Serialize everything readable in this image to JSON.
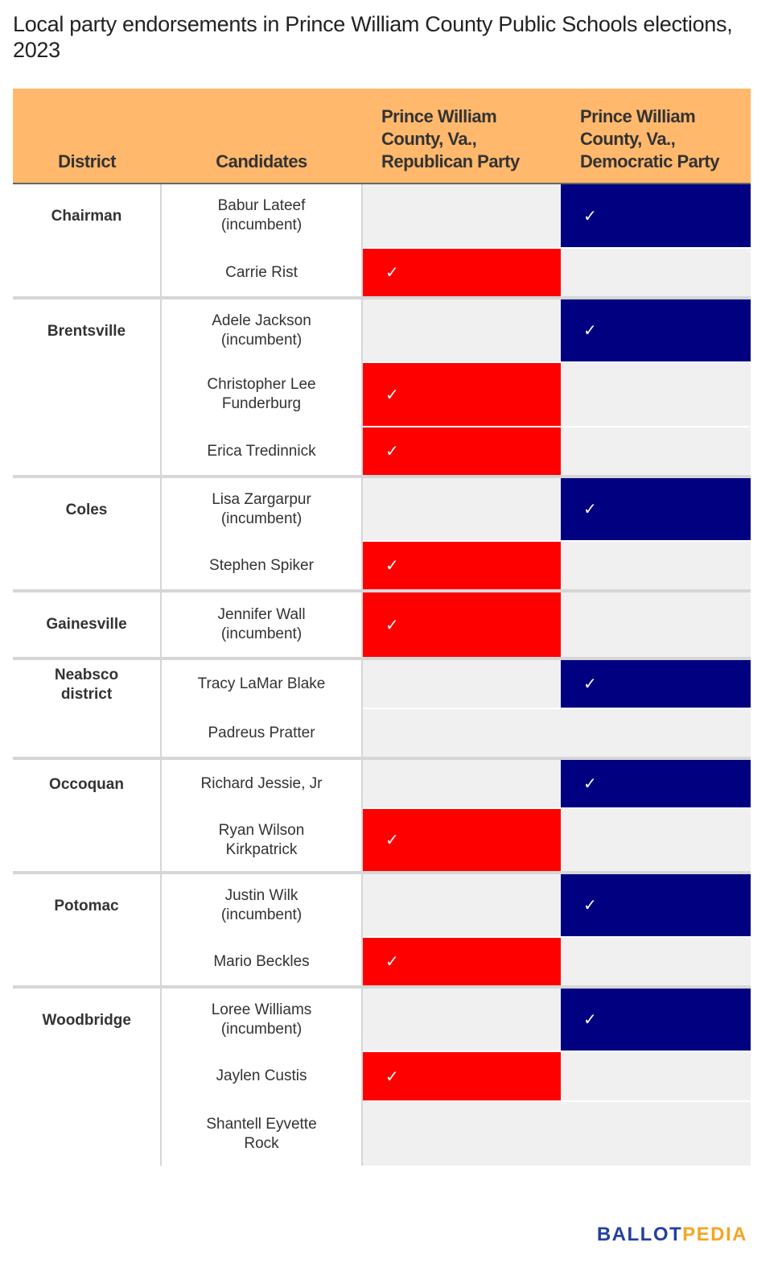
{
  "title": "Local party endorsements in Prince William County Public Schools elections, 2023",
  "colors": {
    "header": "#ffb86c",
    "republican": "#ff0000",
    "democratic": "#000080",
    "empty": "#f0f0f0"
  },
  "logo": {
    "part1": "BALLOT",
    "part2": "PEDIA"
  },
  "chart_data": {
    "type": "table",
    "columns": [
      "District",
      "Candidates",
      "Prince William County, Va., Republican Party",
      "Prince William County, Va., Democratic Party"
    ],
    "check_mark": "✓",
    "groups": [
      {
        "district": "Chairman",
        "candidates": [
          {
            "name": "Babur Lateef (incumbent)",
            "rep": false,
            "dem": true
          },
          {
            "name": "Carrie Rist",
            "rep": true,
            "dem": false
          }
        ]
      },
      {
        "district": "Brentsville",
        "candidates": [
          {
            "name": "Adele Jackson (incumbent)",
            "rep": false,
            "dem": true
          },
          {
            "name": "Christopher Lee Funderburg",
            "rep": true,
            "dem": false
          },
          {
            "name": "Erica Tredinnick",
            "rep": true,
            "dem": false
          }
        ]
      },
      {
        "district": "Coles",
        "candidates": [
          {
            "name": "Lisa Zargarpur (incumbent)",
            "rep": false,
            "dem": true
          },
          {
            "name": "Stephen Spiker",
            "rep": true,
            "dem": false
          }
        ]
      },
      {
        "district": "Gainesville",
        "candidates": [
          {
            "name": "Jennifer Wall (incumbent)",
            "rep": true,
            "dem": false
          }
        ]
      },
      {
        "district": "Neabsco district",
        "candidates": [
          {
            "name": "Tracy LaMar Blake",
            "rep": false,
            "dem": true
          },
          {
            "name": "Padreus Pratter",
            "rep": false,
            "dem": false
          }
        ]
      },
      {
        "district": "Occoquan",
        "candidates": [
          {
            "name": "Richard Jessie, Jr",
            "rep": false,
            "dem": true
          },
          {
            "name": "Ryan Wilson Kirkpatrick",
            "rep": true,
            "dem": false
          }
        ]
      },
      {
        "district": "Potomac",
        "candidates": [
          {
            "name": "Justin Wilk (incumbent)",
            "rep": false,
            "dem": true
          },
          {
            "name": "Mario Beckles",
            "rep": true,
            "dem": false
          }
        ]
      },
      {
        "district": "Woodbridge",
        "candidates": [
          {
            "name": "Loree Williams (incumbent)",
            "rep": false,
            "dem": true
          },
          {
            "name": "Jaylen Custis",
            "rep": true,
            "dem": false
          },
          {
            "name": "Shantell Eyvette Rock",
            "rep": false,
            "dem": false
          }
        ]
      }
    ]
  }
}
